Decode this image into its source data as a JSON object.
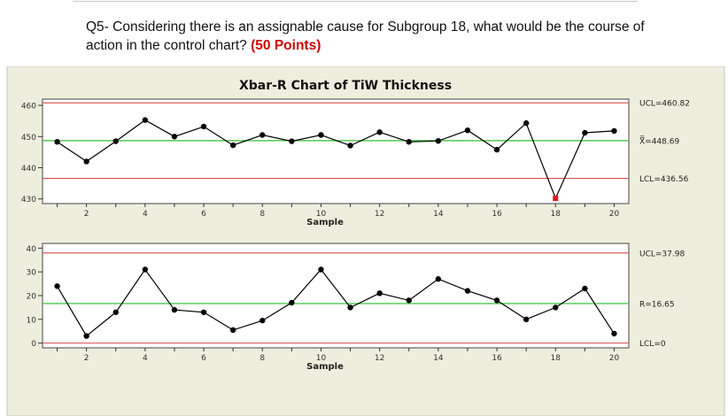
{
  "question": {
    "text": "Q5- Considering there is an assignable cause for Subgroup 18, what would be the course of action in the control chart?",
    "points": "(50 Points)"
  },
  "colors": {
    "background": "#ffffff",
    "panel": "#eeeede",
    "plot": "#ffffff",
    "limit_line": "#d94b4b",
    "center_line": "#4fc94f",
    "series": "#000000",
    "out_of_control_point": "#e8141e"
  },
  "chart_data": [
    {
      "type": "line",
      "title": "Xbar-R Chart of TiW Thickness",
      "xlabel": "Sample",
      "ylabel": "",
      "xlim": [
        0.5,
        20.5
      ],
      "ylim": [
        428.5,
        462
      ],
      "x_ticks": [
        2,
        4,
        6,
        8,
        10,
        12,
        14,
        16,
        18,
        20
      ],
      "y_ticks": [
        430,
        440,
        450,
        460
      ],
      "x": [
        1,
        2,
        3,
        4,
        5,
        6,
        7,
        8,
        9,
        10,
        11,
        12,
        13,
        14,
        15,
        16,
        17,
        18,
        19,
        20
      ],
      "series": [
        {
          "values": [
            448.3,
            442.0,
            448.5,
            455.3,
            450.0,
            453.2,
            447.2,
            450.5,
            448.5,
            450.5,
            447.1,
            451.4,
            448.3,
            448.6,
            452.0,
            445.8,
            454.3,
            430.2,
            451.2,
            451.8
          ]
        }
      ],
      "highlighted_points": [
        18
      ],
      "control_limits": [
        {
          "name": "UCL",
          "value": 460.82,
          "label": "UCL=460.82"
        },
        {
          "name": "Xbar",
          "value": 448.69,
          "label": "X̿=448.69"
        },
        {
          "name": "LCL",
          "value": 436.56,
          "label": "LCL=436.56"
        }
      ]
    },
    {
      "type": "line",
      "title": "",
      "xlabel": "Sample",
      "ylabel": "",
      "xlim": [
        0.5,
        20.5
      ],
      "ylim": [
        -2,
        42
      ],
      "x_ticks": [
        2,
        4,
        6,
        8,
        10,
        12,
        14,
        16,
        18,
        20
      ],
      "y_ticks": [
        0,
        10,
        20,
        30,
        40
      ],
      "x": [
        1,
        2,
        3,
        4,
        5,
        6,
        7,
        8,
        9,
        10,
        11,
        12,
        13,
        14,
        15,
        16,
        17,
        18,
        19,
        20
      ],
      "series": [
        {
          "values": [
            24,
            3,
            13,
            31,
            14,
            13,
            5.5,
            9.5,
            17,
            31,
            15,
            21,
            18,
            27,
            22,
            18,
            10,
            15,
            23,
            4
          ]
        }
      ],
      "control_limits": [
        {
          "name": "UCL",
          "value": 37.98,
          "label": "UCL=37.98"
        },
        {
          "name": "Rbar",
          "value": 16.65,
          "label": "R=16.65"
        },
        {
          "name": "LCL",
          "value": 0,
          "label": "LCL=0"
        }
      ]
    }
  ]
}
